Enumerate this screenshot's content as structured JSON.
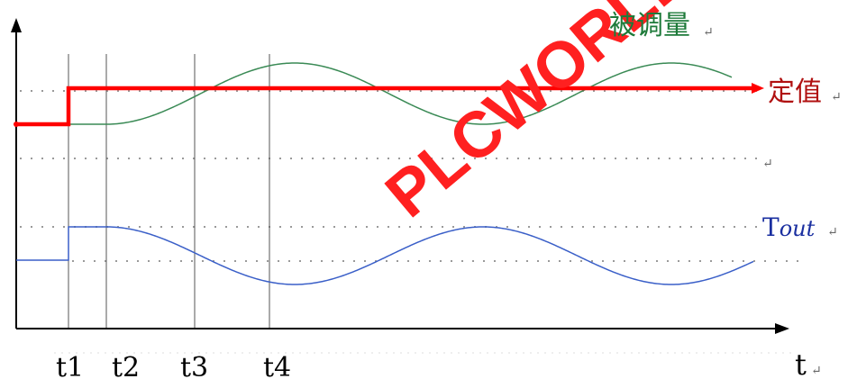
{
  "labels": {
    "controlled_variable": "被调量",
    "setpoint": "定值",
    "tout_prefix": "T",
    "tout_suffix": "out",
    "t1": "t1",
    "t2": "t2",
    "t3": "t3",
    "t4": "t4",
    "t_axis": "t",
    "return_mark": "↵"
  },
  "watermark": "PLCWORLD.CN",
  "colors": {
    "axis": "#000000",
    "setpoint": "#ff0000",
    "controlled_variable": "#3a8a55",
    "controlled_label": "#1e7a3a",
    "setpoint_label": "#b01010",
    "tout": "#3a5fc8",
    "tout_label": "#1a2fa0",
    "dotted": "#9a9a9a",
    "watermark": "#ff2020"
  }
}
